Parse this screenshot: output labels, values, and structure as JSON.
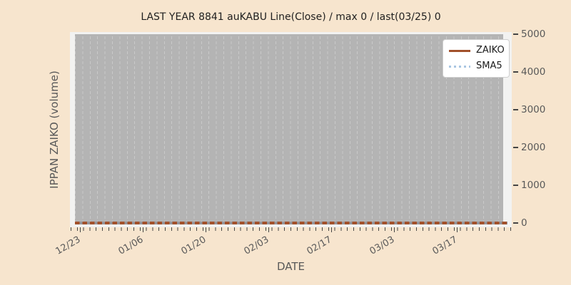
{
  "chart_data": {
    "type": "line",
    "title": "LAST YEAR 8841 auKABU Line(Close) / max 0 / last(03/25) 0",
    "xlabel": "DATE",
    "ylabel": "IPPAN ZAIKO (volume)",
    "xticks": [
      "12/23",
      "01/06",
      "01/20",
      "02/03",
      "02/17",
      "03/03",
      "03/17"
    ],
    "yticks": [
      "0",
      "1000",
      "2000",
      "3000",
      "4000",
      "5000"
    ],
    "ylim": [
      0,
      5000
    ],
    "x_range": [
      "12/23",
      "03/25"
    ],
    "grid": "vertical-dashed",
    "legend_position": "upper-right",
    "series": [
      {
        "name": "ZAIKO",
        "style": "solid",
        "color": "#a2512b",
        "constant_value": 0,
        "values_at_xticks": [
          0,
          0,
          0,
          0,
          0,
          0,
          0
        ]
      },
      {
        "name": "SMA5",
        "style": "dotted",
        "color": "#a9c6e2",
        "constant_value": 0,
        "values_at_xticks": [
          0,
          0,
          0,
          0,
          0,
          0,
          0
        ]
      }
    ],
    "stats": {
      "max": 0,
      "last_date": "03/25",
      "last_value": 0
    }
  },
  "colors": {
    "figure_bg": "#f7e5ce",
    "plot_margin_bg": "#f2f2f1",
    "plot_bg": "#b4b4b4",
    "gridline": "#c9c9c9",
    "title_text": "#1f1f1f",
    "tick_text": "#595959",
    "legend_bg": "#ffffff",
    "legend_border": "#cfcfcf",
    "zaiko_line": "#a2512b",
    "sma5_line": "#a9c6e2"
  }
}
